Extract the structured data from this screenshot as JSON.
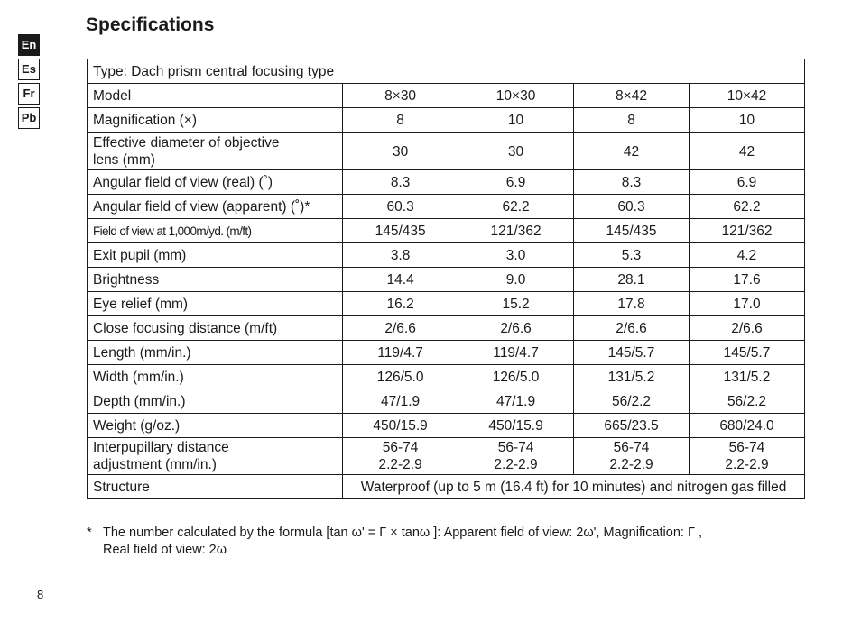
{
  "title": "Specifications",
  "languages": [
    {
      "code": "En",
      "active": true
    },
    {
      "code": "Es",
      "active": false
    },
    {
      "code": "Fr",
      "active": false
    },
    {
      "code": "Pb",
      "active": false
    }
  ],
  "table": {
    "type_row": "Type: Dach prism central focusing type",
    "rows": [
      {
        "label": [
          "Model"
        ],
        "values": [
          [
            "8×30"
          ],
          [
            "10×30"
          ],
          [
            "8×42"
          ],
          [
            "10×42"
          ]
        ]
      },
      {
        "label": [
          "Magnification (×)"
        ],
        "values": [
          [
            "8"
          ],
          [
            "10"
          ],
          [
            "8"
          ],
          [
            "10"
          ]
        ]
      },
      {
        "label": [
          "Effective diameter of objective",
          "lens (mm)"
        ],
        "values": [
          [
            "30"
          ],
          [
            "30"
          ],
          [
            "42"
          ],
          [
            "42"
          ]
        ]
      },
      {
        "label": [
          "Angular field of view (real) (˚)"
        ],
        "values": [
          [
            "8.3"
          ],
          [
            "6.9"
          ],
          [
            "8.3"
          ],
          [
            "6.9"
          ]
        ]
      },
      {
        "label": [
          "Angular field of view (apparent) (˚)*"
        ],
        "values": [
          [
            "60.3"
          ],
          [
            "62.2"
          ],
          [
            "60.3"
          ],
          [
            "62.2"
          ]
        ]
      },
      {
        "label": [
          "Field of view at 1,000m/yd. (m/ft)"
        ],
        "values": [
          [
            "145/435"
          ],
          [
            "121/362"
          ],
          [
            "145/435"
          ],
          [
            "121/362"
          ]
        ]
      },
      {
        "label": [
          "Exit pupil (mm)"
        ],
        "values": [
          [
            "3.8"
          ],
          [
            "3.0"
          ],
          [
            "5.3"
          ],
          [
            "4.2"
          ]
        ]
      },
      {
        "label": [
          "Brightness"
        ],
        "values": [
          [
            "14.4"
          ],
          [
            "9.0"
          ],
          [
            "28.1"
          ],
          [
            "17.6"
          ]
        ]
      },
      {
        "label": [
          "Eye relief (mm)"
        ],
        "values": [
          [
            "16.2"
          ],
          [
            "15.2"
          ],
          [
            "17.8"
          ],
          [
            "17.0"
          ]
        ]
      },
      {
        "label": [
          "Close focusing distance (m/ft)"
        ],
        "values": [
          [
            "2/6.6"
          ],
          [
            "2/6.6"
          ],
          [
            "2/6.6"
          ],
          [
            "2/6.6"
          ]
        ]
      },
      {
        "label": [
          "Length (mm/in.)"
        ],
        "values": [
          [
            "119/4.7"
          ],
          [
            "119/4.7"
          ],
          [
            "145/5.7"
          ],
          [
            "145/5.7"
          ]
        ]
      },
      {
        "label": [
          "Width (mm/in.)"
        ],
        "values": [
          [
            "126/5.0"
          ],
          [
            "126/5.0"
          ],
          [
            "131/5.2"
          ],
          [
            "131/5.2"
          ]
        ]
      },
      {
        "label": [
          "Depth (mm/in.)"
        ],
        "values": [
          [
            "47/1.9"
          ],
          [
            "47/1.9"
          ],
          [
            "56/2.2"
          ],
          [
            "56/2.2"
          ]
        ]
      },
      {
        "label": [
          "Weight (g/oz.)"
        ],
        "values": [
          [
            "450/15.9"
          ],
          [
            "450/15.9"
          ],
          [
            "665/23.5"
          ],
          [
            "680/24.0"
          ]
        ]
      },
      {
        "label": [
          "Interpupillary distance",
          "adjustment (mm/in.)"
        ],
        "values": [
          [
            "56-74",
            "2.2-2.9"
          ],
          [
            "56-74",
            "2.2-2.9"
          ],
          [
            "56-74",
            "2.2-2.9"
          ],
          [
            "56-74",
            "2.2-2.9"
          ]
        ]
      }
    ],
    "structure_label": "Structure",
    "structure_value": "Waterproof (up to 5 m (16.4 ft) for 10 minutes) and nitrogen gas filled"
  },
  "footnote": {
    "mark": "*",
    "lines": [
      "The number calculated by the formula [tan ω' = Γ × tanω ]: Apparent field of view: 2ω', Magnification: Γ ,",
      "Real field of view: 2ω"
    ]
  },
  "page_number": "8"
}
